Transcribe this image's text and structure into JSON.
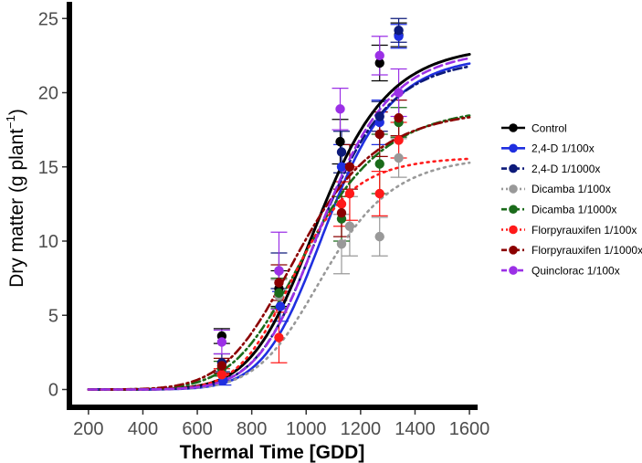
{
  "chart_data": {
    "type": "scatter",
    "xlabel": "Thermal Time [GDD]",
    "ylabel_main": "Dry matter (g plant",
    "ylabel_sup": "−1",
    "ylabel_close": ")",
    "xlim": [
      130,
      1630
    ],
    "ylim": [
      -1.2,
      26
    ],
    "xticks": [
      200,
      400,
      600,
      800,
      1000,
      1200,
      1400,
      1600
    ],
    "yticks": [
      0,
      5,
      10,
      15,
      20,
      25
    ],
    "legend_position": "right",
    "series": [
      {
        "name": "Control",
        "color": "#000000",
        "dash": "solid",
        "width": 3,
        "curve": {
          "d": 23.3,
          "e": 1050,
          "b": -8.2
        },
        "points": [
          {
            "x": 690,
            "y": 3.6,
            "err": 0.5
          },
          {
            "x": 900,
            "y": 6.8,
            "err": 1.2
          },
          {
            "x": 1125,
            "y": 16.7,
            "err": 1.5
          },
          {
            "x": 1270,
            "y": 22.0,
            "err": 1.2
          },
          {
            "x": 1340,
            "y": 23.9,
            "err": 0.8
          }
        ]
      },
      {
        "name": "2,4-D 1/100x",
        "color": "#1f2fe0",
        "dash": "solid",
        "width": 2.6,
        "curve": {
          "d": 22.6,
          "e": 1080,
          "b": -9.0
        },
        "points": [
          {
            "x": 695,
            "y": 0.6,
            "err": 0.3
          },
          {
            "x": 905,
            "y": 5.6,
            "err": 1.0
          },
          {
            "x": 1130,
            "y": 15.0,
            "err": 1.5
          },
          {
            "x": 1270,
            "y": 18.0,
            "err": 1.5
          },
          {
            "x": 1340,
            "y": 23.8,
            "err": 0.8
          }
        ]
      },
      {
        "name": "2,4-D 1/1000x",
        "color": "#0d1a7a",
        "dash": "dashdot",
        "width": 2.6,
        "curve": {
          "d": 22.4,
          "e": 1060,
          "b": -8.6
        },
        "points": [
          {
            "x": 690,
            "y": 1.8,
            "err": 0.6
          },
          {
            "x": 900,
            "y": 8.0,
            "err": 1.2
          },
          {
            "x": 1130,
            "y": 16.0,
            "err": 1.4
          },
          {
            "x": 1270,
            "y": 18.4,
            "err": 1.0
          },
          {
            "x": 1340,
            "y": 24.2,
            "err": 0.8
          }
        ]
      },
      {
        "name": "Dicamba 1/100x",
        "color": "#999999",
        "dash": "dot",
        "width": 2.6,
        "curve": {
          "d": 15.8,
          "e": 1070,
          "b": -8.4
        },
        "points": [
          {
            "x": 690,
            "y": 1.0,
            "err": 0.4
          },
          {
            "x": 900,
            "y": 6.3,
            "err": 1.1
          },
          {
            "x": 1130,
            "y": 9.8,
            "err": 2.0
          },
          {
            "x": 1160,
            "y": 11.0,
            "err": 2.0
          },
          {
            "x": 1270,
            "y": 10.3,
            "err": 1.3
          },
          {
            "x": 1340,
            "y": 15.6,
            "err": 1.3
          }
        ]
      },
      {
        "name": "Dicamba 1/1000x",
        "color": "#1a6b1a",
        "dash": "dashdot",
        "width": 2.6,
        "curve": {
          "d": 19.2,
          "e": 1010,
          "b": -7.0
        },
        "points": [
          {
            "x": 690,
            "y": 1.4,
            "err": 0.5
          },
          {
            "x": 900,
            "y": 6.5,
            "err": 1.0
          },
          {
            "x": 1130,
            "y": 11.5,
            "err": 1.5
          },
          {
            "x": 1270,
            "y": 15.2,
            "err": 2.0
          },
          {
            "x": 1340,
            "y": 18.0,
            "err": 1.0
          }
        ]
      },
      {
        "name": "Florpyrauxifen 1/100x",
        "color": "#ff1a1a",
        "dash": "dot",
        "width": 2.6,
        "curve": {
          "d": 15.7,
          "e": 960,
          "b": -9.0
        },
        "points": [
          {
            "x": 690,
            "y": 1.0,
            "err": 0.4
          },
          {
            "x": 900,
            "y": 3.5,
            "err": 1.7
          },
          {
            "x": 1130,
            "y": 12.5,
            "err": 1.5
          },
          {
            "x": 1160,
            "y": 13.2,
            "err": 1.8
          },
          {
            "x": 1270,
            "y": 13.2,
            "err": 1.5
          },
          {
            "x": 1340,
            "y": 16.8,
            "err": 1.2
          }
        ]
      },
      {
        "name": "Florpyrauxifen 1/1000x",
        "color": "#8b0000",
        "dash": "dashdot",
        "width": 2.6,
        "curve": {
          "d": 19.0,
          "e": 980,
          "b": -6.8
        },
        "points": [
          {
            "x": 690,
            "y": 1.6,
            "err": 0.5
          },
          {
            "x": 900,
            "y": 7.2,
            "err": 1.2
          },
          {
            "x": 1130,
            "y": 11.9,
            "err": 1.6
          },
          {
            "x": 1160,
            "y": 15.0,
            "err": 1.5
          },
          {
            "x": 1270,
            "y": 17.2,
            "err": 1.5
          },
          {
            "x": 1340,
            "y": 18.3,
            "err": 1.2
          }
        ]
      },
      {
        "name": "Quinclorac 1/100x",
        "color": "#9b30e6",
        "dash": "dash",
        "width": 2.6,
        "curve": {
          "d": 23.0,
          "e": 1065,
          "b": -8.6
        },
        "points": [
          {
            "x": 690,
            "y": 3.2,
            "err": 0.8
          },
          {
            "x": 900,
            "y": 8.0,
            "err": 2.6
          },
          {
            "x": 1125,
            "y": 18.9,
            "err": 1.4
          },
          {
            "x": 1270,
            "y": 22.5,
            "err": 1.3
          },
          {
            "x": 1340,
            "y": 20.0,
            "err": 1.6
          }
        ]
      }
    ]
  }
}
